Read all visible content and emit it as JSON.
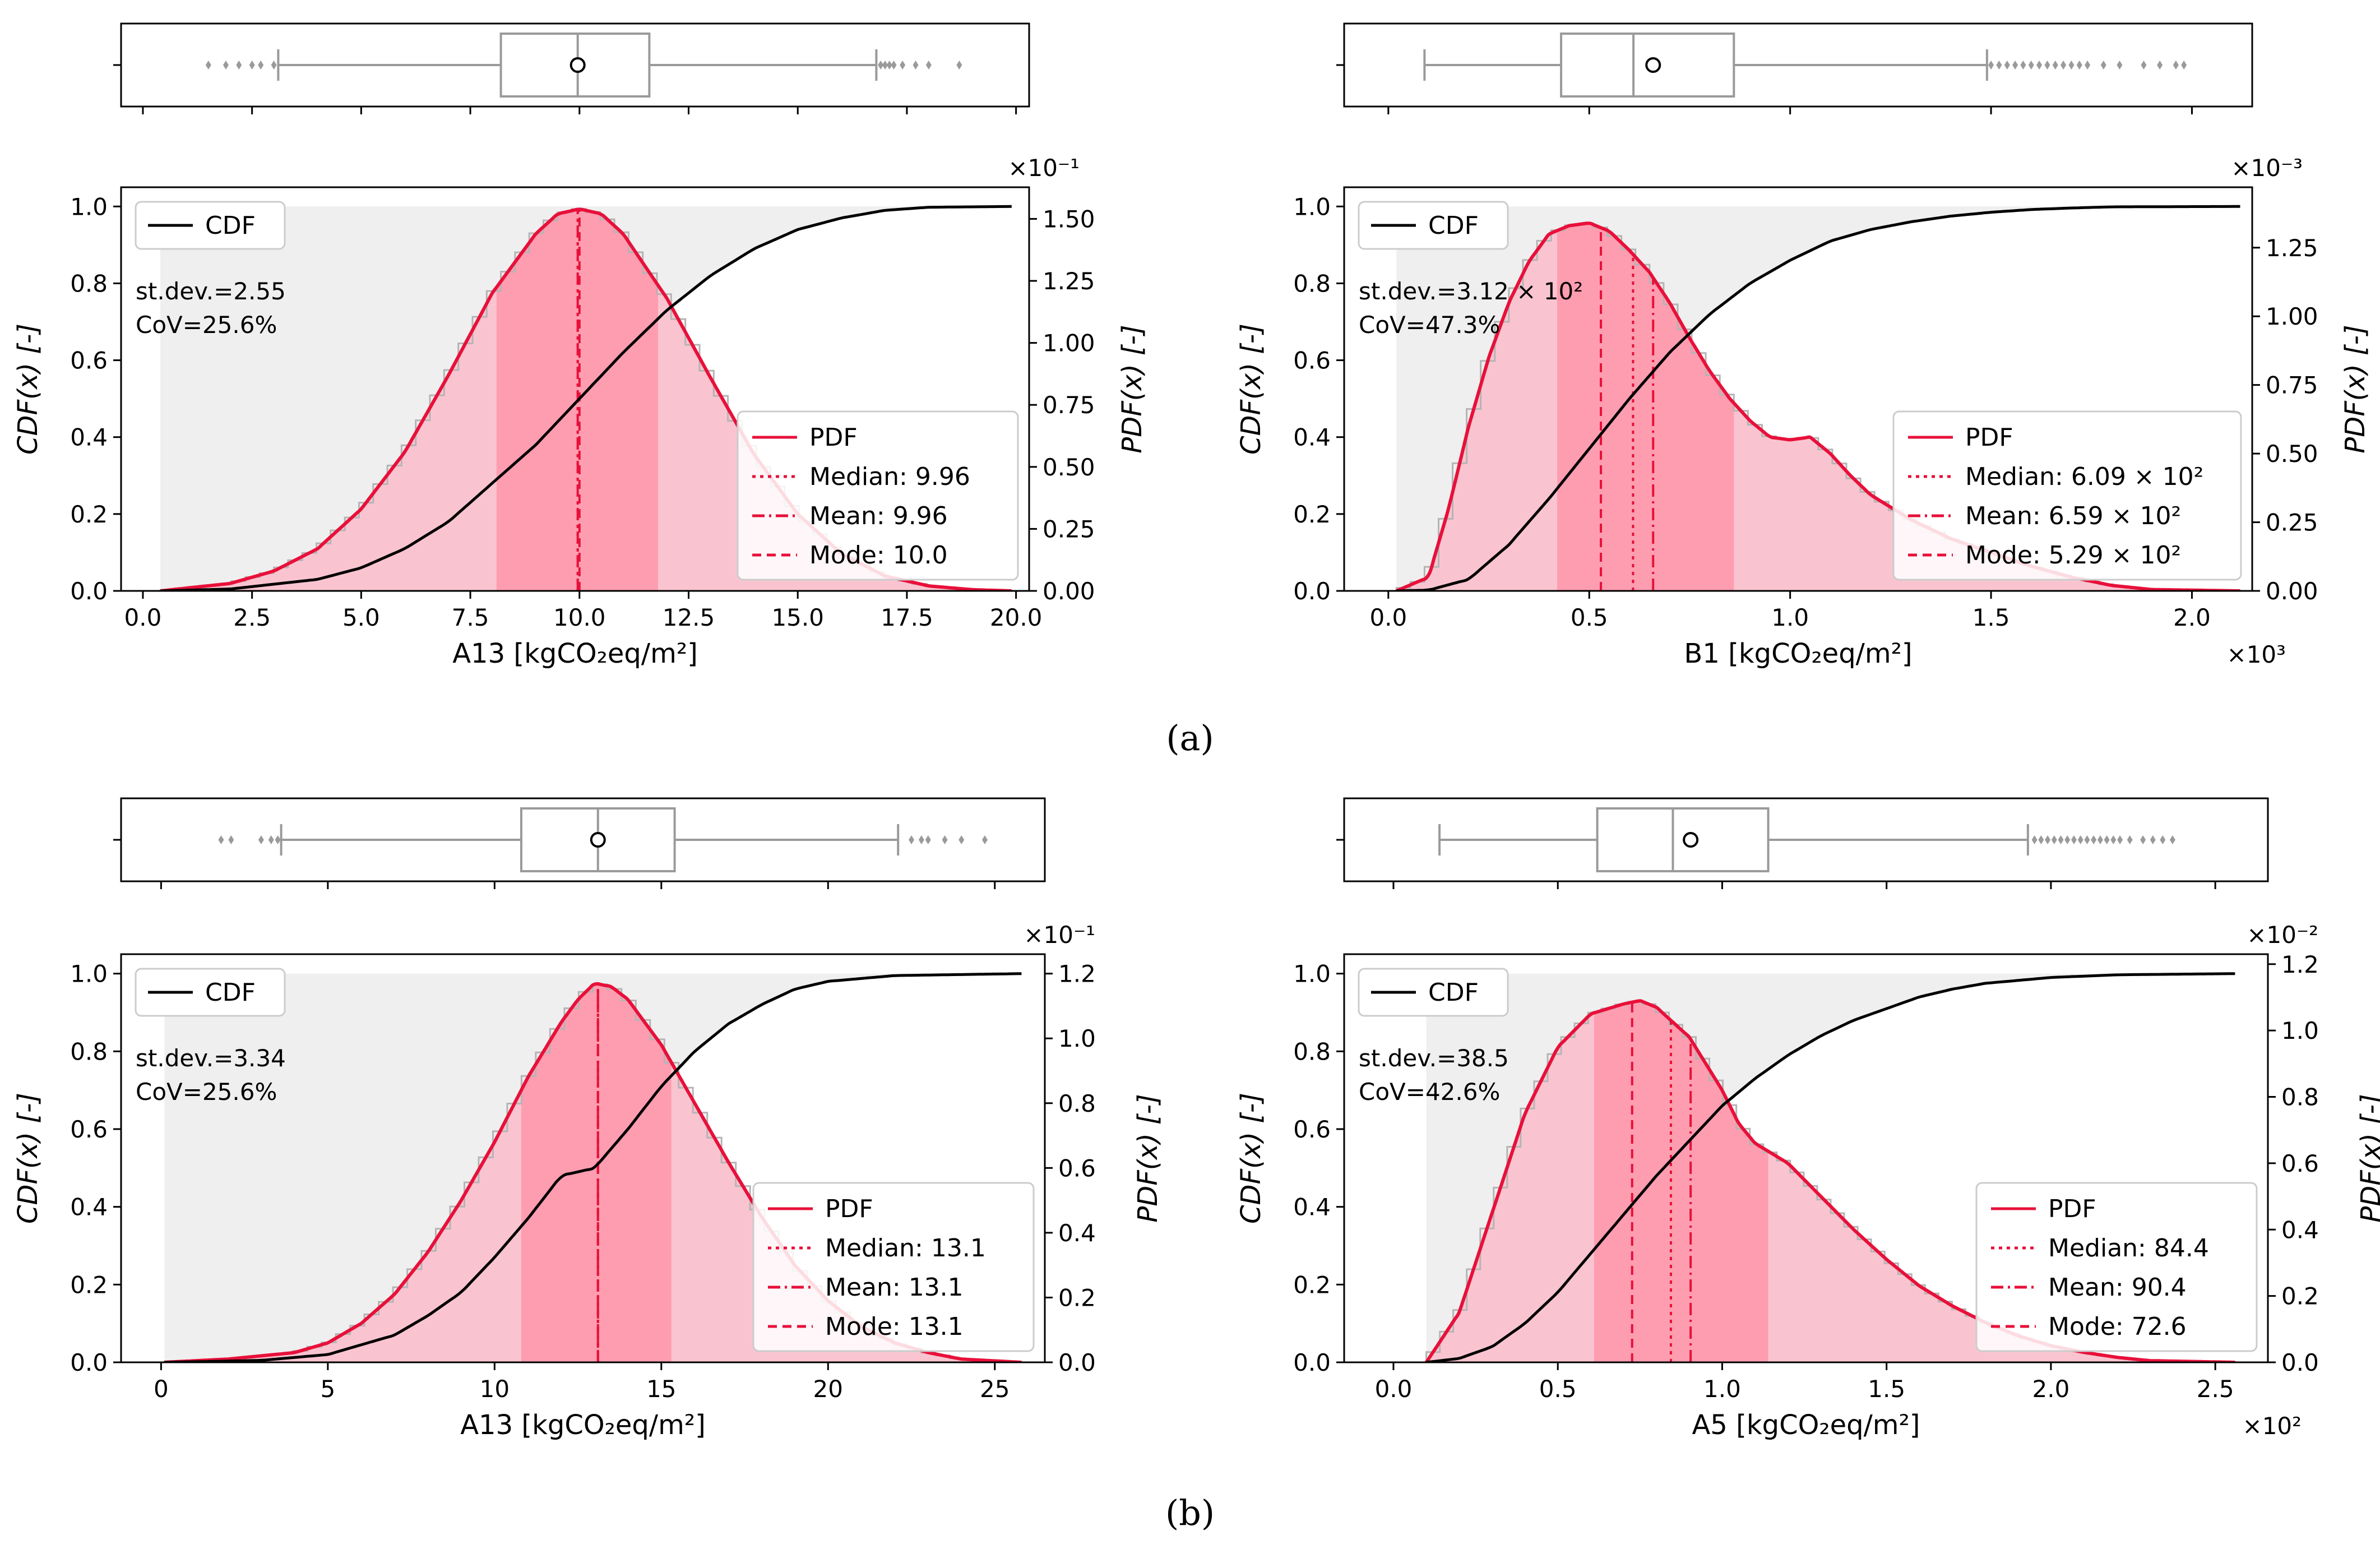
{
  "figure": {
    "panel_labels": [
      "(a)",
      "(b)"
    ]
  },
  "colors": {
    "pdf": "#e8103a",
    "cdf": "#000000",
    "fill_light": "#f9c4d0",
    "fill_dark": "#ff9db0",
    "cdf_fill": "#efefef",
    "hist": "#b4b4b4",
    "box": "#9a9a9a"
  },
  "chart_data": [
    {
      "type": "distribution",
      "panel": "a",
      "position": "left",
      "title": "",
      "xlabel": "A13 [kgCO₂eq/m²]",
      "x_multiplier": "",
      "ylabel_left": "CDF(x) [-]",
      "ylabel_right": "PDF(x) [-]",
      "pdf_multiplier": "×10⁻¹",
      "xlim": [
        -0.5,
        20.3
      ],
      "xticks": [
        0,
        2.5,
        5,
        7.5,
        10,
        12.5,
        15,
        17.5,
        20
      ],
      "xtick_labels": [
        "0.0",
        "2.5",
        "5.0",
        "7.5",
        "10.0",
        "12.5",
        "15.0",
        "17.5",
        "20.0"
      ],
      "cdf_ylim": [
        0,
        1.05
      ],
      "cdf_ticks": [
        0,
        0.2,
        0.4,
        0.6,
        0.8,
        1.0
      ],
      "cdf_tick_labels": [
        "0.0",
        "0.2",
        "0.4",
        "0.6",
        "0.8",
        "1.0"
      ],
      "pdf_ylim": [
        0,
        1.6275
      ],
      "pdf_ticks": [
        0,
        0.25,
        0.5,
        0.75,
        1.0,
        1.25,
        1.5
      ],
      "pdf_tick_labels": [
        "0.00",
        "0.25",
        "0.50",
        "0.75",
        "1.00",
        "1.25",
        "1.50"
      ],
      "data_range": [
        0.4,
        19.9
      ],
      "ci_band": [
        8.1,
        11.8
      ],
      "pdf_curve": {
        "x": [
          0.4,
          2.0,
          3.0,
          4.0,
          5.0,
          6.0,
          7.0,
          8.0,
          9.0,
          9.5,
          10.0,
          10.5,
          11.0,
          12.0,
          13.0,
          14.0,
          15.0,
          16.0,
          17.0,
          18.0,
          19.0,
          19.9
        ],
        "y": [
          0.0,
          0.03,
          0.08,
          0.17,
          0.33,
          0.56,
          0.87,
          1.2,
          1.44,
          1.52,
          1.54,
          1.52,
          1.44,
          1.18,
          0.86,
          0.55,
          0.31,
          0.15,
          0.06,
          0.02,
          0.005,
          0.0
        ]
      },
      "cdf_curve": {
        "x": [
          0.4,
          2.0,
          4.0,
          5.0,
          6.0,
          7.0,
          8.0,
          9.0,
          10.0,
          11.0,
          12.0,
          13.0,
          14.0,
          15.0,
          16.0,
          17.0,
          18.0,
          19.9
        ],
        "y": [
          0.0,
          0.005,
          0.03,
          0.06,
          0.11,
          0.18,
          0.28,
          0.38,
          0.5,
          0.62,
          0.73,
          0.82,
          0.89,
          0.94,
          0.97,
          0.99,
          0.998,
          1.0
        ]
      },
      "stats": {
        "median": 9.96,
        "mean": 9.96,
        "mode": 10.0
      },
      "legend_cdf": "CDF",
      "legend_pdf": [
        "PDF",
        "Median: 9.96",
        "Mean: 9.96",
        "Mode: 10.0"
      ],
      "annotation": [
        "st.dev.=2.55",
        "CoV=25.6%"
      ],
      "boxplot": {
        "whisker_low": 3.1,
        "q1": 8.2,
        "median": 9.96,
        "q3": 11.6,
        "whisker_high": 16.8,
        "mean": 9.96,
        "fliers": [
          1.5,
          1.9,
          2.2,
          2.5,
          2.7,
          3.0,
          16.9,
          17.0,
          17.1,
          17.2,
          17.4,
          17.7,
          18.0,
          18.7
        ]
      }
    },
    {
      "type": "distribution",
      "panel": "a",
      "position": "right",
      "title": "",
      "xlabel": "B1 [kgCO₂eq/m²]",
      "x_multiplier": "×10³",
      "ylabel_left": "CDF(x) [-]",
      "ylabel_right": "PDF(x) [-]",
      "pdf_multiplier": "×10⁻³",
      "xlim": [
        -0.11,
        2.15
      ],
      "xticks": [
        0,
        0.5,
        1.0,
        1.5,
        2.0
      ],
      "xtick_labels": [
        "0.0",
        "0.5",
        "1.0",
        "1.5",
        "2.0"
      ],
      "cdf_ylim": [
        0,
        1.05
      ],
      "cdf_ticks": [
        0,
        0.2,
        0.4,
        0.6,
        0.8,
        1.0
      ],
      "cdf_tick_labels": [
        "0.0",
        "0.2",
        "0.4",
        "0.6",
        "0.8",
        "1.0"
      ],
      "pdf_ylim": [
        0,
        1.47
      ],
      "pdf_ticks": [
        0,
        0.25,
        0.5,
        0.75,
        1.0,
        1.25
      ],
      "pdf_tick_labels": [
        "0.00",
        "0.25",
        "0.50",
        "0.75",
        "1.00",
        "1.25"
      ],
      "data_range": [
        0.02,
        2.12
      ],
      "ci_band": [
        0.42,
        0.86
      ],
      "pdf_curve": {
        "x": [
          0.02,
          0.1,
          0.15,
          0.2,
          0.25,
          0.3,
          0.35,
          0.4,
          0.45,
          0.5,
          0.55,
          0.6,
          0.65,
          0.7,
          0.75,
          0.8,
          0.85,
          0.9,
          0.95,
          1.0,
          1.05,
          1.1,
          1.15,
          1.2,
          1.3,
          1.4,
          1.5,
          1.6,
          1.7,
          1.8,
          1.9,
          2.12
        ],
        "y": [
          0.0,
          0.05,
          0.3,
          0.6,
          0.85,
          1.05,
          1.2,
          1.3,
          1.33,
          1.34,
          1.31,
          1.24,
          1.16,
          1.05,
          0.92,
          0.8,
          0.7,
          0.62,
          0.56,
          0.55,
          0.56,
          0.5,
          0.42,
          0.35,
          0.26,
          0.19,
          0.14,
          0.09,
          0.05,
          0.02,
          0.005,
          0.0
        ]
      },
      "cdf_curve": {
        "x": [
          0.02,
          0.1,
          0.2,
          0.3,
          0.4,
          0.5,
          0.6,
          0.7,
          0.8,
          0.9,
          1.0,
          1.1,
          1.2,
          1.3,
          1.4,
          1.5,
          1.6,
          1.7,
          1.8,
          2.12
        ],
        "y": [
          0.0,
          0.002,
          0.03,
          0.12,
          0.24,
          0.37,
          0.5,
          0.62,
          0.72,
          0.8,
          0.86,
          0.91,
          0.94,
          0.96,
          0.975,
          0.985,
          0.992,
          0.996,
          0.999,
          1.0
        ]
      },
      "stats": {
        "median": 0.609,
        "mean": 0.659,
        "mode": 0.529
      },
      "legend_cdf": "CDF",
      "legend_pdf": [
        "PDF",
        "Median: 6.09 × 10²",
        "Mean: 6.59 × 10²",
        "Mode: 5.29 × 10²"
      ],
      "annotation": [
        "st.dev.=3.12 × 10²",
        "CoV=47.3%"
      ],
      "boxplot": {
        "whisker_low": 0.09,
        "q1": 0.43,
        "median": 0.61,
        "q3": 0.86,
        "whisker_high": 1.49,
        "mean": 0.659,
        "fliers": [
          1.5,
          1.52,
          1.54,
          1.56,
          1.58,
          1.6,
          1.62,
          1.64,
          1.66,
          1.68,
          1.7,
          1.72,
          1.74,
          1.78,
          1.82,
          1.88,
          1.92,
          1.96,
          1.98
        ]
      }
    },
    {
      "type": "distribution",
      "panel": "b",
      "position": "left",
      "title": "",
      "xlabel": "A13 [kgCO₂eq/m²]",
      "x_multiplier": "",
      "ylabel_left": "CDF(x) [-]",
      "ylabel_right": "PDF(x) [-]",
      "pdf_multiplier": "×10⁻¹",
      "xlim": [
        -1.2,
        26.5
      ],
      "xticks": [
        0,
        5,
        10,
        15,
        20,
        25
      ],
      "xtick_labels": [
        "0",
        "5",
        "10",
        "15",
        "20",
        "25"
      ],
      "cdf_ylim": [
        0,
        1.05
      ],
      "cdf_ticks": [
        0,
        0.2,
        0.4,
        0.6,
        0.8,
        1.0
      ],
      "cdf_tick_labels": [
        "0.0",
        "0.2",
        "0.4",
        "0.6",
        "0.8",
        "1.0"
      ],
      "pdf_ylim": [
        0,
        1.26
      ],
      "pdf_ticks": [
        0,
        0.2,
        0.4,
        0.6,
        0.8,
        1.0,
        1.2
      ],
      "pdf_tick_labels": [
        "0.0",
        "0.2",
        "0.4",
        "0.6",
        "0.8",
        "1.0",
        "1.2"
      ],
      "data_range": [
        0.1,
        25.8
      ],
      "ci_band": [
        10.8,
        15.3
      ],
      "pdf_curve": {
        "x": [
          0.1,
          2.0,
          4.0,
          5.0,
          6.0,
          7.0,
          8.0,
          9.0,
          10.0,
          11.0,
          12.0,
          12.5,
          13.0,
          13.5,
          14.0,
          15.0,
          16.0,
          17.0,
          18.0,
          19.0,
          20.0,
          21.0,
          22.0,
          23.0,
          24.0,
          25.8
        ],
        "y": [
          0.0,
          0.01,
          0.03,
          0.06,
          0.12,
          0.21,
          0.34,
          0.5,
          0.68,
          0.88,
          1.05,
          1.12,
          1.17,
          1.16,
          1.12,
          0.98,
          0.8,
          0.62,
          0.45,
          0.3,
          0.19,
          0.11,
          0.06,
          0.03,
          0.01,
          0.0
        ]
      },
      "cdf_curve": {
        "x": [
          0.1,
          3.0,
          5.0,
          7.0,
          8.0,
          9.0,
          10.0,
          11.0,
          12.0,
          13.0,
          14.0,
          15.0,
          16.0,
          17.0,
          18.0,
          19.0,
          20.0,
          22.0,
          25.8
        ],
        "y": [
          0.0,
          0.005,
          0.02,
          0.07,
          0.12,
          0.18,
          0.27,
          0.37,
          0.48,
          0.5,
          0.6,
          0.71,
          0.8,
          0.87,
          0.92,
          0.96,
          0.98,
          0.995,
          1.0
        ]
      },
      "stats": {
        "median": 13.1,
        "mean": 13.1,
        "mode": 13.1
      },
      "legend_cdf": "CDF",
      "legend_pdf": [
        "PDF",
        "Median: 13.1",
        "Mean: 13.1",
        "Mode: 13.1"
      ],
      "annotation": [
        "st.dev.=3.34",
        "CoV=25.6%"
      ],
      "boxplot": {
        "whisker_low": 3.6,
        "q1": 10.8,
        "median": 13.1,
        "q3": 15.4,
        "whisker_high": 22.1,
        "mean": 13.1,
        "fliers": [
          1.8,
          2.1,
          3.0,
          3.3,
          3.5,
          22.5,
          22.8,
          23.0,
          23.5,
          24.0,
          24.7
        ]
      }
    },
    {
      "type": "distribution",
      "panel": "b",
      "position": "right",
      "title": "",
      "xlabel": "A5 [kgCO₂eq/m²]",
      "x_multiplier": "×10²",
      "ylabel_left": "CDF(x) [-]",
      "ylabel_right": "PDF(x) [-]",
      "pdf_multiplier": "×10⁻²",
      "xlim": [
        -0.15,
        2.66
      ],
      "xticks": [
        0,
        0.5,
        1.0,
        1.5,
        2.0,
        2.5
      ],
      "xtick_labels": [
        "0.0",
        "0.5",
        "1.0",
        "1.5",
        "2.0",
        "2.5"
      ],
      "cdf_ylim": [
        0,
        1.05
      ],
      "cdf_ticks": [
        0,
        0.2,
        0.4,
        0.6,
        0.8,
        1.0
      ],
      "cdf_tick_labels": [
        "0.0",
        "0.2",
        "0.4",
        "0.6",
        "0.8",
        "1.0"
      ],
      "pdf_ylim": [
        0,
        1.23
      ],
      "pdf_ticks": [
        0,
        0.2,
        0.4,
        0.6,
        0.8,
        1.0,
        1.2
      ],
      "pdf_tick_labels": [
        "0.0",
        "0.2",
        "0.4",
        "0.6",
        "0.8",
        "1.0",
        "1.2"
      ],
      "data_range": [
        0.1,
        2.56
      ],
      "ci_band": [
        0.61,
        1.14
      ],
      "pdf_curve": {
        "x": [
          0.1,
          0.2,
          0.3,
          0.4,
          0.5,
          0.6,
          0.7,
          0.75,
          0.8,
          0.9,
          1.0,
          1.05,
          1.1,
          1.15,
          1.2,
          1.3,
          1.4,
          1.5,
          1.6,
          1.7,
          1.8,
          1.9,
          2.0,
          2.1,
          2.2,
          2.3,
          2.56
        ],
        "y": [
          0.0,
          0.15,
          0.45,
          0.75,
          0.95,
          1.05,
          1.08,
          1.09,
          1.07,
          0.98,
          0.82,
          0.72,
          0.66,
          0.63,
          0.6,
          0.5,
          0.4,
          0.31,
          0.23,
          0.17,
          0.12,
          0.08,
          0.05,
          0.03,
          0.015,
          0.005,
          0.0
        ]
      },
      "cdf_curve": {
        "x": [
          0.1,
          0.2,
          0.3,
          0.4,
          0.5,
          0.6,
          0.7,
          0.8,
          0.9,
          1.0,
          1.1,
          1.2,
          1.3,
          1.4,
          1.5,
          1.6,
          1.7,
          1.8,
          2.0,
          2.2,
          2.56
        ],
        "y": [
          0.0,
          0.01,
          0.04,
          0.1,
          0.18,
          0.28,
          0.38,
          0.48,
          0.57,
          0.66,
          0.73,
          0.79,
          0.84,
          0.88,
          0.91,
          0.94,
          0.96,
          0.975,
          0.99,
          0.997,
          1.0
        ]
      },
      "stats": {
        "median": 0.844,
        "mean": 0.904,
        "mode": 0.726
      },
      "legend_cdf": "CDF",
      "legend_pdf": [
        "PDF",
        "Median: 84.4",
        "Mean: 90.4",
        "Mode: 72.6"
      ],
      "annotation": [
        "st.dev.=38.5",
        "CoV=42.6%"
      ],
      "boxplot": {
        "whisker_low": 0.14,
        "q1": 0.62,
        "median": 0.85,
        "q3": 1.14,
        "whisker_high": 1.93,
        "mean": 0.904,
        "fliers": [
          1.95,
          1.97,
          1.99,
          2.01,
          2.03,
          2.05,
          2.07,
          2.09,
          2.11,
          2.13,
          2.15,
          2.17,
          2.19,
          2.21,
          2.24,
          2.28,
          2.31,
          2.34,
          2.37
        ]
      }
    }
  ]
}
